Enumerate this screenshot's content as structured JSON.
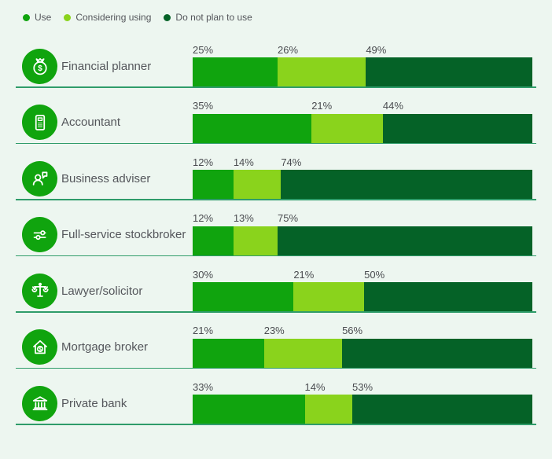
{
  "colors": {
    "background": "#edf6f0",
    "divider": "#2f9c6a",
    "category_text": "#54565b",
    "value_text": "#4a4c50",
    "icon_background": "#10a40e",
    "icon_foreground": "#ffffff"
  },
  "chart_data": {
    "type": "bar",
    "orientation": "horizontal",
    "stacked": true,
    "value_unit": "%",
    "xlim": [
      0,
      100
    ],
    "grid": false,
    "legend_position": "top-left",
    "series": [
      {
        "name": "Use",
        "color": "#10a40e"
      },
      {
        "name": "Considering using",
        "color": "#8ad31c"
      },
      {
        "name": "Do not plan to use",
        "color": "#056227"
      }
    ],
    "rows": [
      {
        "category": "Financial planner",
        "icon": "money-bag",
        "values": [
          25,
          26,
          49
        ],
        "labels": [
          "25%",
          "26%",
          "49%"
        ]
      },
      {
        "category": "Accountant",
        "icon": "calculator",
        "values": [
          35,
          21,
          44
        ],
        "labels": [
          "35%",
          "21%",
          "44%"
        ]
      },
      {
        "category": "Business adviser",
        "icon": "person-chat",
        "values": [
          12,
          14,
          74
        ],
        "labels": [
          "12%",
          "14%",
          "74%"
        ]
      },
      {
        "category": "Full-service stockbroker",
        "icon": "sliders",
        "values": [
          12,
          13,
          75
        ],
        "labels": [
          "12%",
          "13%",
          "75%"
        ]
      },
      {
        "category": "Lawyer/solicitor",
        "icon": "scales",
        "values": [
          30,
          21,
          50
        ],
        "labels": [
          "30%",
          "21%",
          "50%"
        ]
      },
      {
        "category": "Mortgage broker",
        "icon": "house-dollar",
        "values": [
          21,
          23,
          56
        ],
        "labels": [
          "21%",
          "23%",
          "56%"
        ]
      },
      {
        "category": "Private bank",
        "icon": "bank",
        "values": [
          33,
          14,
          53
        ],
        "labels": [
          "33%",
          "14%",
          "53%"
        ]
      }
    ]
  }
}
